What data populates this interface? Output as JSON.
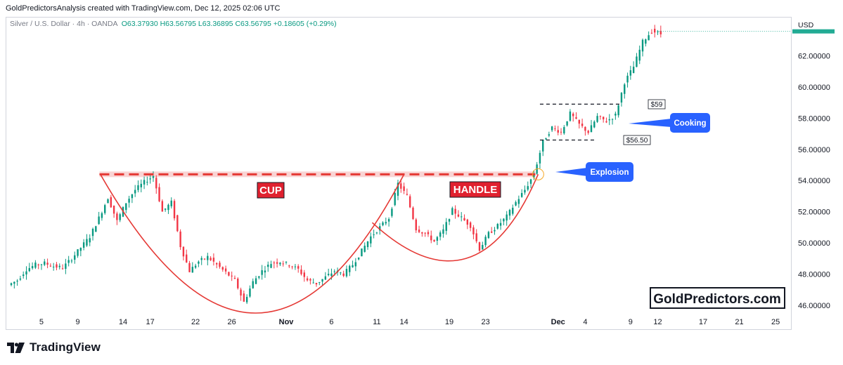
{
  "header": {
    "attribution": "GoldPredictorsAnalysis created with TradingView.com, Dec 12, 2025 02:06 UTC"
  },
  "legend": {
    "symbol": "Silver / U.S. Dollar · 4h · OANDA",
    "ohlc": "O63.37930  H63.56795  L63.36895  C63.56795  +0.18605 (+0.29%)"
  },
  "currency": "USD",
  "footer": {
    "brand": "TradingView",
    "brand_icon": "tradingview-logo-icon"
  },
  "watermark": "GoldPredictors.com",
  "colors": {
    "up": "#089981",
    "down": "#f23645",
    "pattern": "#e53935",
    "callout": "#2962ff",
    "last_price": "#22ab94",
    "resistance_band": "#f8c9c9"
  },
  "annotations": {
    "cup_label": "CUP",
    "handle_label": "HANDLE",
    "explosion_label": "Explosion",
    "cooking_label": "Cooking",
    "level_high": "$59",
    "level_low": "$56.50"
  },
  "chart_data": {
    "type": "candlestick",
    "title": "Silver / U.S. Dollar · 4h · OANDA",
    "ylim": [
      45.5,
      64.5
    ],
    "y_ticks": [
      46,
      48,
      50,
      52,
      54,
      56,
      58,
      60,
      62
    ],
    "y_tick_labels": [
      "46.00000",
      "48.00000",
      "50.00000",
      "52.00000",
      "54.00000",
      "56.00000",
      "58.00000",
      "60.00000",
      "62.00000"
    ],
    "x_ticks": [
      {
        "label": "5",
        "t": 3.5
      },
      {
        "label": "9",
        "t": 7.5
      },
      {
        "label": "14",
        "t": 12.5
      },
      {
        "label": "17",
        "t": 15.5
      },
      {
        "label": "22",
        "t": 20.5
      },
      {
        "label": "26",
        "t": 24.5
      },
      {
        "label": "Nov",
        "t": 30.5,
        "bold": true
      },
      {
        "label": "6",
        "t": 35.5
      },
      {
        "label": "11",
        "t": 40.5
      },
      {
        "label": "14",
        "t": 43.5
      },
      {
        "label": "19",
        "t": 48.5
      },
      {
        "label": "23",
        "t": 52.5
      },
      {
        "label": "Dec",
        "t": 60.5,
        "bold": true
      },
      {
        "label": "4",
        "t": 63.5
      },
      {
        "label": "9",
        "t": 68.5
      },
      {
        "label": "12",
        "t": 71.5
      },
      {
        "label": "17",
        "t": 76.5
      },
      {
        "label": "21",
        "t": 80.5
      },
      {
        "label": "25",
        "t": 84.5
      }
    ],
    "t_range": [
      -0.3,
      86.2
    ],
    "daily_path": [
      [
        0,
        47.3
      ],
      [
        1,
        47.6
      ],
      [
        2,
        48.3
      ],
      [
        3,
        48.6
      ],
      [
        4,
        48.7
      ],
      [
        5,
        48.5
      ],
      [
        6,
        48.4
      ],
      [
        7,
        49.0
      ],
      [
        8,
        49.7
      ],
      [
        9,
        50.4
      ],
      [
        10,
        51.6
      ],
      [
        11,
        52.9
      ],
      [
        12,
        51.4
      ],
      [
        13,
        52.6
      ],
      [
        14,
        53.4
      ],
      [
        15,
        53.9
      ],
      [
        16,
        54.3
      ],
      [
        17,
        52.0
      ],
      [
        18,
        52.6
      ],
      [
        19,
        49.8
      ],
      [
        20,
        48.2
      ],
      [
        21,
        48.8
      ],
      [
        22,
        49.1
      ],
      [
        23,
        48.6
      ],
      [
        24,
        48.1
      ],
      [
        25,
        47.6
      ],
      [
        26,
        46.2
      ],
      [
        27,
        47.5
      ],
      [
        28,
        48.2
      ],
      [
        29,
        48.7
      ],
      [
        30,
        48.8
      ],
      [
        31,
        48.6
      ],
      [
        32,
        48.3
      ],
      [
        33,
        47.6
      ],
      [
        34,
        47.4
      ],
      [
        35,
        47.8
      ],
      [
        36,
        48.2
      ],
      [
        37,
        48.0
      ],
      [
        38,
        48.6
      ],
      [
        39,
        49.5
      ],
      [
        40,
        50.4
      ],
      [
        41,
        51.0
      ],
      [
        42,
        51.6
      ],
      [
        43,
        53.8
      ],
      [
        44,
        53.0
      ],
      [
        45,
        50.9
      ],
      [
        46,
        50.6
      ],
      [
        47,
        50.1
      ],
      [
        48,
        50.8
      ],
      [
        49,
        52.1
      ],
      [
        50,
        51.6
      ],
      [
        51,
        51.1
      ],
      [
        52,
        49.6
      ],
      [
        53,
        50.6
      ],
      [
        54,
        51.1
      ],
      [
        55,
        51.7
      ],
      [
        56,
        52.6
      ],
      [
        57,
        53.4
      ],
      [
        58,
        54.4
      ],
      [
        59,
        56.5
      ],
      [
        60,
        57.4
      ],
      [
        61,
        57.1
      ],
      [
        62,
        58.3
      ],
      [
        63,
        57.6
      ],
      [
        64,
        57.1
      ],
      [
        65,
        58.1
      ],
      [
        66,
        57.8
      ],
      [
        67,
        58.2
      ],
      [
        68,
        60.3
      ],
      [
        69,
        61.3
      ],
      [
        70,
        62.9
      ],
      [
        71,
        63.6
      ],
      [
        72,
        63.4
      ]
    ],
    "series": [
      {
        "name": "Silver / U.S. Dollar",
        "interval": "4h"
      }
    ],
    "last_price": 63.56795,
    "levels": [
      {
        "name": "resistance",
        "y": 54.4,
        "t_from": 9.9,
        "t_to": 58.0
      },
      {
        "name": "range_high",
        "y": 58.9,
        "t_from": 58.5,
        "t_to": 67.5
      },
      {
        "name": "range_low",
        "y": 56.6,
        "t_from": 58.5,
        "t_to": 64.5
      }
    ],
    "cup_curve": {
      "t_from": 10.0,
      "t_mid": 27.5,
      "t_to": 43.5,
      "y_left": 54.4,
      "y_bottom": 45.5,
      "y_right": 54.4
    },
    "handle_curve": {
      "t_from": 40.0,
      "t_mid": 51.5,
      "t_to": 58.3,
      "y_left": 51.3,
      "y_bottom": 49.0,
      "y_right": 54.4
    }
  }
}
